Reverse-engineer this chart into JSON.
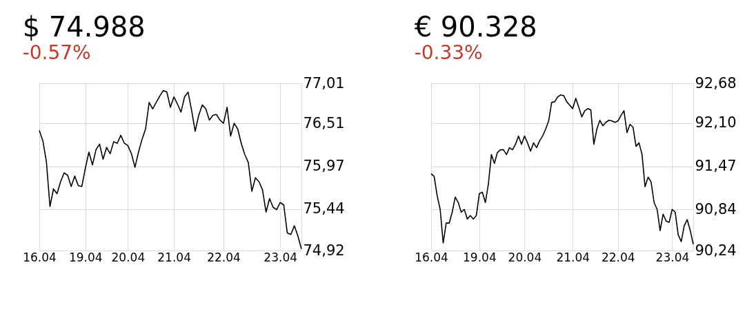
{
  "chart_data": [
    {
      "type": "line",
      "title": "$ 74.988",
      "subtitle": "-0.57%",
      "grid": true,
      "categories": [
        "16.04",
        null,
        null,
        null,
        null,
        null,
        null,
        null,
        null,
        null,
        null,
        null,
        null,
        "19.04",
        null,
        null,
        null,
        null,
        null,
        null,
        null,
        null,
        null,
        null,
        null,
        "20.04",
        null,
        null,
        null,
        null,
        null,
        null,
        null,
        null,
        null,
        null,
        null,
        null,
        "21.04",
        null,
        null,
        null,
        null,
        null,
        null,
        null,
        null,
        null,
        null,
        null,
        null,
        null,
        "22.04",
        null,
        null,
        null,
        null,
        null,
        null,
        null,
        null,
        null,
        null,
        null,
        null,
        null,
        null,
        null,
        "23.04",
        null,
        null,
        null,
        null,
        null,
        null
      ],
      "ylim": [
        74.92,
        77.01
      ],
      "yticks": [
        {
          "value": 74.92,
          "label": "74,92"
        },
        {
          "value": 75.44,
          "label": "75,44"
        },
        {
          "value": 75.97,
          "label": "75,97"
        },
        {
          "value": 76.51,
          "label": "76,51"
        },
        {
          "value": 77.01,
          "label": "77,01"
        }
      ],
      "series": [
        {
          "color": "#000000",
          "values": [
            76.42,
            76.29,
            76.03,
            75.47,
            75.69,
            75.63,
            75.78,
            75.89,
            75.86,
            75.72,
            75.85,
            75.73,
            75.72,
            75.95,
            76.15,
            75.99,
            76.18,
            76.25,
            76.06,
            76.21,
            76.13,
            76.28,
            76.26,
            76.36,
            76.26,
            76.23,
            76.13,
            75.96,
            76.15,
            76.31,
            76.44,
            76.77,
            76.69,
            76.77,
            76.85,
            76.92,
            76.9,
            76.71,
            76.84,
            76.75,
            76.65,
            76.84,
            76.9,
            76.67,
            76.41,
            76.61,
            76.74,
            76.69,
            76.55,
            76.61,
            76.62,
            76.55,
            76.51,
            76.71,
            76.35,
            76.51,
            76.44,
            76.26,
            76.12,
            76.02,
            75.66,
            75.83,
            75.78,
            75.68,
            75.4,
            75.57,
            75.46,
            75.43,
            75.52,
            75.49,
            75.14,
            75.12,
            75.23,
            75.1,
            74.94
          ]
        }
      ]
    },
    {
      "type": "line",
      "title": "€ 90.328",
      "subtitle": "-0.33%",
      "grid": true,
      "categories": [
        "16.04",
        null,
        null,
        null,
        null,
        null,
        null,
        null,
        null,
        null,
        null,
        null,
        null,
        null,
        null,
        null,
        "19.04",
        null,
        null,
        null,
        null,
        null,
        null,
        null,
        null,
        null,
        null,
        null,
        null,
        null,
        null,
        "20.04",
        null,
        null,
        null,
        null,
        null,
        null,
        null,
        null,
        null,
        null,
        null,
        null,
        null,
        null,
        null,
        "21.04",
        null,
        null,
        null,
        null,
        null,
        null,
        null,
        null,
        null,
        null,
        null,
        null,
        null,
        null,
        "22.04",
        null,
        null,
        null,
        null,
        null,
        null,
        null,
        null,
        null,
        null,
        null,
        null,
        null,
        null,
        null,
        null,
        null,
        "23.04",
        null,
        null,
        null,
        null,
        null,
        null,
        null
      ],
      "ylim": [
        90.24,
        92.68
      ],
      "yticks": [
        {
          "value": 90.24,
          "label": "90,24"
        },
        {
          "value": 90.84,
          "label": "90,84"
        },
        {
          "value": 91.47,
          "label": "91,47"
        },
        {
          "value": 92.1,
          "label": "92,10"
        },
        {
          "value": 92.68,
          "label": "92,68"
        }
      ],
      "series": [
        {
          "color": "#000000",
          "values": [
            91.36,
            91.32,
            91.04,
            90.84,
            90.35,
            90.64,
            90.64,
            90.8,
            91.02,
            90.94,
            90.8,
            90.84,
            90.7,
            90.75,
            90.7,
            90.75,
            91.07,
            91.09,
            90.94,
            91.21,
            91.64,
            91.51,
            91.67,
            91.71,
            91.71,
            91.64,
            91.74,
            91.71,
            91.79,
            91.91,
            91.79,
            91.91,
            91.81,
            91.69,
            91.81,
            91.74,
            91.84,
            91.91,
            92.01,
            92.13,
            92.4,
            92.41,
            92.48,
            92.51,
            92.5,
            92.41,
            92.36,
            92.31,
            92.46,
            92.33,
            92.19,
            92.28,
            92.31,
            92.29,
            91.79,
            92.01,
            92.14,
            92.06,
            92.11,
            92.14,
            92.13,
            92.11,
            92.13,
            92.21,
            92.28,
            91.96,
            92.08,
            92.04,
            91.76,
            91.81,
            91.64,
            91.17,
            91.31,
            91.24,
            90.94,
            90.84,
            90.53,
            90.77,
            90.67,
            90.65,
            90.84,
            90.8,
            90.47,
            90.37,
            90.6,
            90.69,
            90.53,
            90.33
          ]
        }
      ]
    }
  ]
}
